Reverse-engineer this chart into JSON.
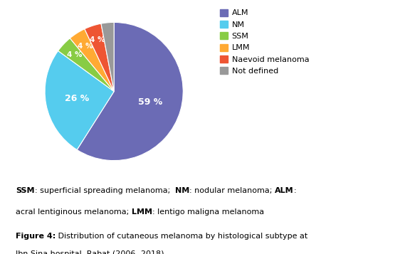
{
  "labels": [
    "ALM",
    "NM",
    "SSM",
    "LMM",
    "Naevoid melanoma",
    "Not defined"
  ],
  "values": [
    59,
    26,
    4,
    4,
    4,
    3
  ],
  "colors": [
    "#6B6BB5",
    "#55CCEE",
    "#88CC44",
    "#FFAA33",
    "#EE5533",
    "#999999"
  ],
  "pct_labels": [
    "59 %",
    "26 %",
    "4 %",
    "4 %",
    "4 %",
    ""
  ],
  "startangle": 90,
  "legend_labels": [
    "ALM",
    "NM",
    "SSM",
    "LMM",
    "Naevoid melanoma",
    "Not defined"
  ],
  "bg_color": "#FFFFFF",
  "border_color": "#CCCCCC"
}
